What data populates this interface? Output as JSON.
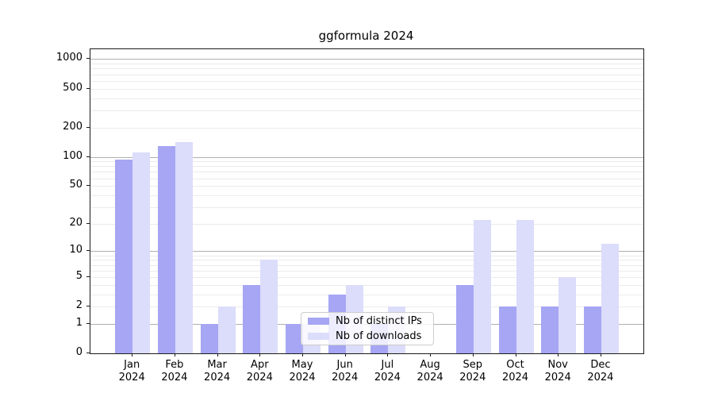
{
  "chart_data": {
    "type": "bar",
    "title": "ggformula 2024",
    "categories": [
      "Jan",
      "Feb",
      "Mar",
      "Apr",
      "May",
      "Jun",
      "Jul",
      "Aug",
      "Sep",
      "Oct",
      "Nov",
      "Dec"
    ],
    "x_year_label": "2024",
    "series": [
      {
        "name": "Nb of distinct IPs",
        "color": "#a6a6f4",
        "values": [
          94,
          128,
          1,
          4,
          1,
          3,
          1,
          0,
          4,
          2,
          2,
          2
        ]
      },
      {
        "name": "Nb of downloads",
        "color": "#dcdcfb",
        "values": [
          110,
          142,
          2,
          8,
          1,
          4,
          2,
          0,
          22,
          22,
          5,
          12
        ]
      }
    ],
    "yscale": "log10(1+value)",
    "ylim": [
      0,
      1260
    ],
    "yticks": [
      0,
      1,
      2,
      5,
      10,
      20,
      50,
      100,
      200,
      500,
      1000
    ],
    "grid": {
      "major_color": "#b0b0b0",
      "minor_color": "#ebebeb",
      "major_at": [
        1,
        10,
        100,
        1000
      ]
    },
    "legend": {
      "position": "lower center",
      "frame": true
    }
  }
}
